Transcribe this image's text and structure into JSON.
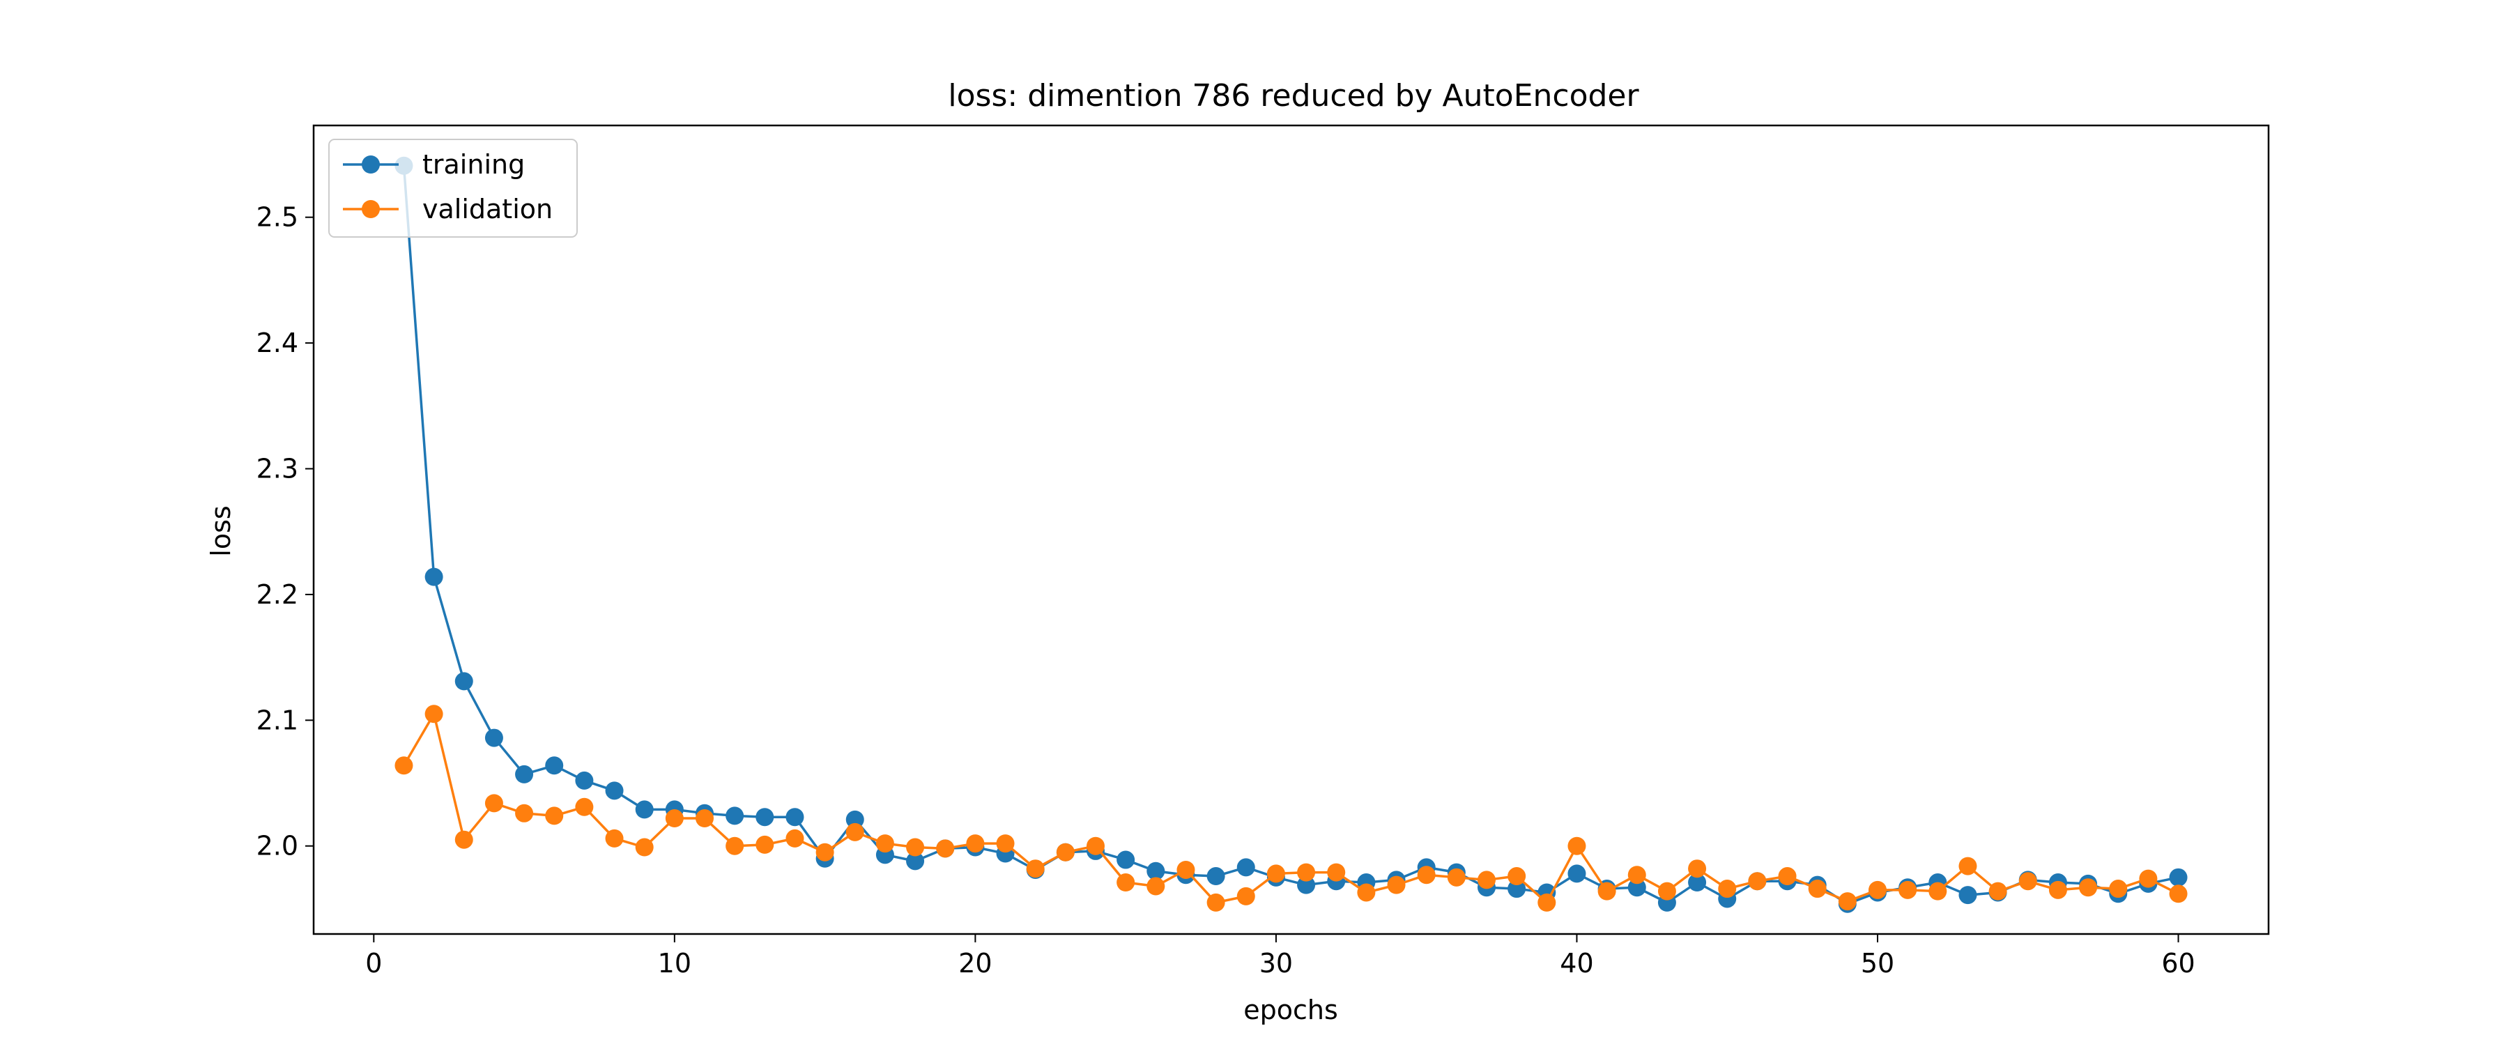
{
  "chart_data": {
    "type": "line",
    "title": "loss: dimention 786 reduced by AutoEncoder",
    "xlabel": "epochs",
    "ylabel": "loss",
    "xlim": [
      -2,
      63
    ],
    "ylim": [
      1.93,
      2.573
    ],
    "xticks": [
      0,
      10,
      20,
      30,
      40,
      50,
      60
    ],
    "yticks": [
      2.0,
      2.1,
      2.2,
      2.3,
      2.4,
      2.5
    ],
    "ytick_labels": [
      "2.0",
      "2.1",
      "2.2",
      "2.3",
      "2.4",
      "2.5"
    ],
    "grid": false,
    "legend_position": "top-left",
    "x": [
      1,
      2,
      3,
      4,
      5,
      6,
      7,
      8,
      9,
      10,
      11,
      12,
      13,
      14,
      15,
      16,
      17,
      18,
      19,
      20,
      21,
      22,
      23,
      24,
      25,
      26,
      27,
      28,
      29,
      30,
      31,
      32,
      33,
      34,
      35,
      36,
      37,
      38,
      39,
      40,
      41,
      42,
      43,
      44,
      45,
      46,
      47,
      48,
      49,
      50,
      51,
      52,
      53,
      54,
      55,
      56,
      57,
      58,
      59,
      60
    ],
    "series": [
      {
        "name": "training",
        "color": "#1f77b4",
        "values": [
          2.541,
          2.214,
          2.131,
          2.086,
          2.057,
          2.064,
          2.052,
          2.044,
          2.029,
          2.029,
          2.026,
          2.024,
          2.023,
          2.023,
          1.99,
          2.021,
          1.993,
          1.988,
          1.998,
          1.999,
          1.994,
          1.981,
          1.995,
          1.996,
          1.989,
          1.98,
          1.977,
          1.976,
          1.983,
          1.975,
          1.969,
          1.972,
          1.971,
          1.973,
          1.983,
          1.979,
          1.967,
          1.966,
          1.963,
          1.978,
          1.966,
          1.967,
          1.955,
          1.971,
          1.958,
          1.972,
          1.972,
          1.969,
          1.954,
          1.963,
          1.967,
          1.971,
          1.961,
          1.963,
          1.973,
          1.971,
          1.97,
          1.962,
          1.97,
          1.975
        ]
      },
      {
        "name": "validation",
        "color": "#ff7f0e",
        "values": [
          2.064,
          2.105,
          2.005,
          2.034,
          2.026,
          2.024,
          2.031,
          2.006,
          1.999,
          2.022,
          2.022,
          2.0,
          2.001,
          2.006,
          1.995,
          2.011,
          2.002,
          1.999,
          1.998,
          2.002,
          2.002,
          1.982,
          1.995,
          2.0,
          1.971,
          1.968,
          1.981,
          1.955,
          1.96,
          1.978,
          1.979,
          1.979,
          1.963,
          1.969,
          1.977,
          1.975,
          1.973,
          1.976,
          1.955,
          2.0,
          1.964,
          1.977,
          1.964,
          1.982,
          1.966,
          1.972,
          1.976,
          1.966,
          1.956,
          1.965,
          1.965,
          1.964,
          1.984,
          1.964,
          1.972,
          1.965,
          1.967,
          1.966,
          1.974,
          1.962
        ]
      }
    ]
  }
}
